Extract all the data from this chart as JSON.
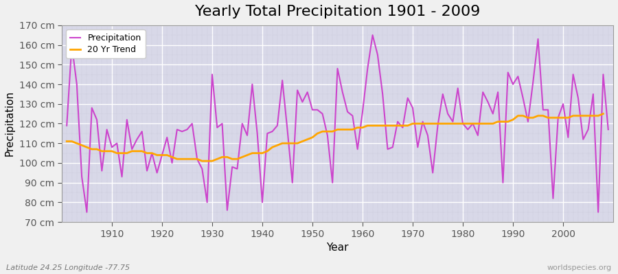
{
  "title": "Yearly Total Precipitation 1901 - 2009",
  "xlabel": "Year",
  "ylabel": "Precipitation",
  "subtitle": "Latitude 24.25 Longitude -77.75",
  "watermark": "worldspecies.org",
  "years": [
    1901,
    1902,
    1903,
    1904,
    1905,
    1906,
    1907,
    1908,
    1909,
    1910,
    1911,
    1912,
    1913,
    1914,
    1915,
    1916,
    1917,
    1918,
    1919,
    1920,
    1921,
    1922,
    1923,
    1924,
    1925,
    1926,
    1927,
    1928,
    1929,
    1930,
    1931,
    1932,
    1933,
    1934,
    1935,
    1936,
    1937,
    1938,
    1939,
    1940,
    1941,
    1942,
    1943,
    1944,
    1945,
    1946,
    1947,
    1948,
    1949,
    1950,
    1951,
    1952,
    1953,
    1954,
    1955,
    1956,
    1957,
    1958,
    1959,
    1960,
    1961,
    1962,
    1963,
    1964,
    1965,
    1966,
    1967,
    1968,
    1969,
    1970,
    1971,
    1972,
    1973,
    1974,
    1975,
    1976,
    1977,
    1978,
    1979,
    1980,
    1981,
    1982,
    1983,
    1984,
    1985,
    1986,
    1987,
    1988,
    1989,
    1990,
    1991,
    1992,
    1993,
    1994,
    1995,
    1996,
    1997,
    1998,
    1999,
    2000,
    2001,
    2002,
    2003,
    2004,
    2005,
    2006,
    2007,
    2008,
    2009
  ],
  "precip": [
    119,
    160,
    140,
    93,
    75,
    128,
    122,
    96,
    117,
    108,
    110,
    93,
    122,
    107,
    112,
    116,
    96,
    105,
    95,
    104,
    113,
    100,
    117,
    116,
    117,
    120,
    102,
    97,
    80,
    145,
    118,
    120,
    76,
    98,
    97,
    120,
    114,
    140,
    115,
    80,
    115,
    116,
    119,
    142,
    117,
    90,
    137,
    131,
    136,
    127,
    127,
    125,
    114,
    90,
    148,
    136,
    126,
    124,
    107,
    126,
    148,
    165,
    155,
    135,
    107,
    108,
    121,
    118,
    133,
    128,
    108,
    121,
    114,
    95,
    119,
    135,
    125,
    121,
    138,
    120,
    117,
    120,
    114,
    136,
    131,
    125,
    136,
    90,
    146,
    140,
    144,
    133,
    121,
    141,
    163,
    127,
    127,
    82,
    123,
    130,
    113,
    145,
    133,
    112,
    117,
    135,
    75,
    145,
    117
  ],
  "trend": [
    111,
    111,
    110,
    109,
    108,
    107,
    107,
    106,
    106,
    106,
    105,
    105,
    105,
    106,
    106,
    106,
    105,
    105,
    104,
    104,
    104,
    103,
    102,
    102,
    102,
    102,
    102,
    101,
    101,
    101,
    102,
    103,
    103,
    102,
    102,
    103,
    104,
    105,
    105,
    105,
    106,
    108,
    109,
    110,
    110,
    110,
    110,
    111,
    112,
    113,
    115,
    116,
    116,
    116,
    117,
    117,
    117,
    117,
    118,
    118,
    119,
    119,
    119,
    119,
    119,
    119,
    119,
    119,
    119,
    120,
    120,
    120,
    120,
    120,
    120,
    120,
    120,
    120,
    120,
    120,
    120,
    120,
    120,
    120,
    120,
    120,
    121,
    121,
    121,
    122,
    124,
    124,
    123,
    123,
    124,
    124,
    123,
    123,
    123,
    123,
    123,
    124,
    124,
    124,
    124,
    124,
    124,
    125,
    null
  ],
  "precip_color": "#cc44cc",
  "trend_color": "#FFA500",
  "figure_bg_color": "#f0f0f0",
  "plot_bg_color": "#d8d8e8",
  "ylim": [
    70,
    170
  ],
  "yticks": [
    70,
    80,
    90,
    100,
    110,
    120,
    130,
    140,
    150,
    160,
    170
  ],
  "ytick_labels": [
    "70 cm",
    "80 cm",
    "90 cm",
    "100 cm",
    "110 cm",
    "120 cm",
    "130 cm",
    "140 cm",
    "150 cm",
    "160 cm",
    "170 cm"
  ],
  "grid_color": "#ffffff",
  "title_fontsize": 16,
  "label_fontsize": 11,
  "tick_fontsize": 10,
  "legend_fontsize": 9,
  "subtitle_fontsize": 8,
  "watermark_fontsize": 8
}
